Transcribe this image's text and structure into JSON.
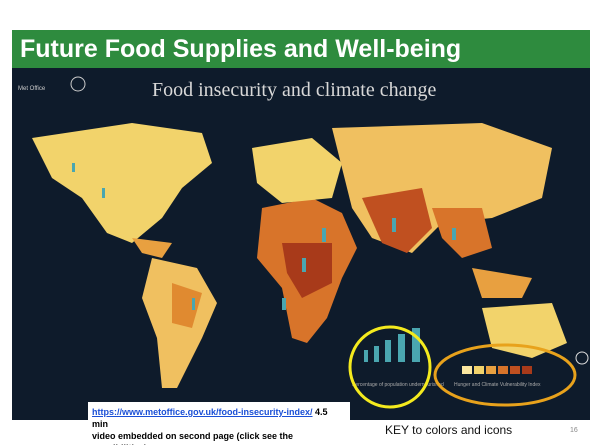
{
  "header": {
    "title": "Future Food Supplies and Well-being"
  },
  "image": {
    "title": "Food insecurity and climate change",
    "legend_people": "Percentage of population undernourished",
    "legend_index": "Hunger and Climate Vulnerability Index"
  },
  "note": {
    "link": "https://www.metoffice.gov.uk/food-insecurity-index/",
    "bold_1": "4.5 min",
    "bold_2": "video embedded on second page (click see the possibilities)"
  },
  "key": "KEY to colors and icons",
  "slide_number": "16"
}
